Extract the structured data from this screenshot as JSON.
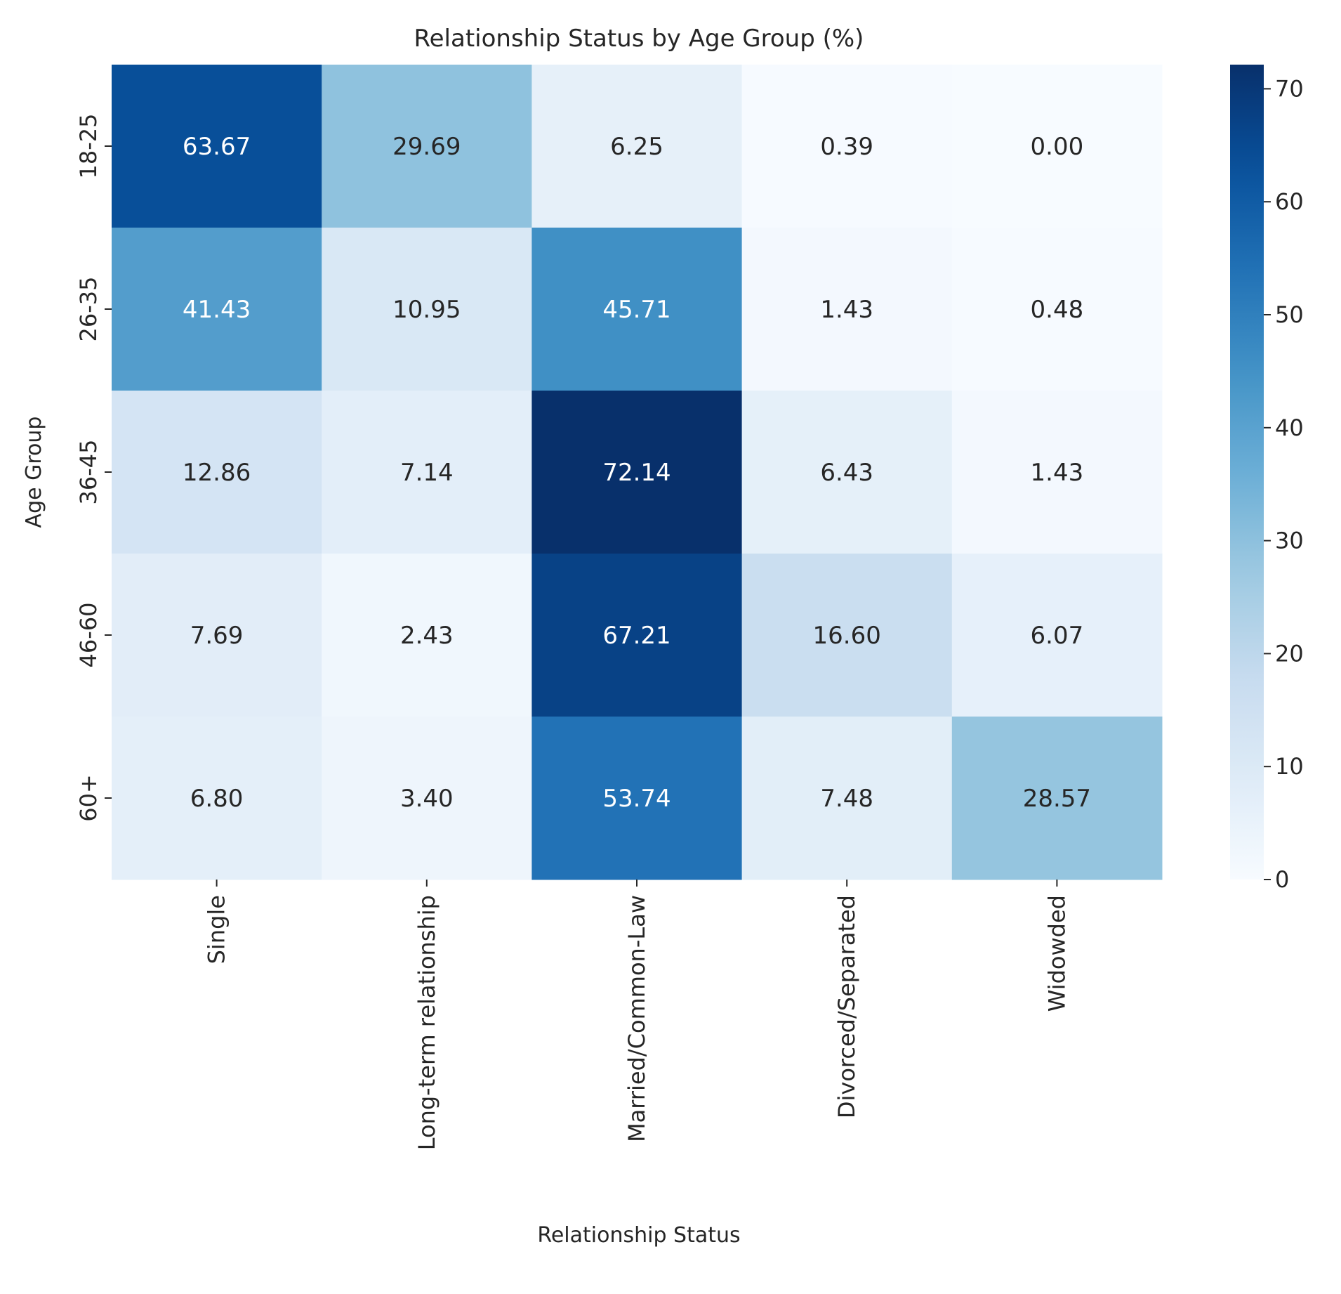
{
  "chart_data": {
    "type": "heatmap",
    "title": "Relationship Status by Age Group (%)",
    "xlabel": "Relationship Status",
    "ylabel": "Age Group",
    "x_categories": [
      "Single",
      "Long-term relationship",
      "Married/Common-Law",
      "Divorced/Separated",
      "Widowded"
    ],
    "y_categories": [
      "18-25",
      "26-35",
      "36-45",
      "46-60",
      "60+"
    ],
    "values": [
      [
        63.67,
        29.69,
        6.25,
        0.39,
        0.0
      ],
      [
        41.43,
        10.95,
        45.71,
        1.43,
        0.48
      ],
      [
        12.86,
        7.14,
        72.14,
        6.43,
        1.43
      ],
      [
        7.69,
        2.43,
        67.21,
        16.6,
        6.07
      ],
      [
        6.8,
        3.4,
        53.74,
        7.48,
        28.57
      ]
    ],
    "value_format": "2 decimals",
    "colormap": "Blues",
    "colorbar": {
      "range": [
        0,
        72.14
      ],
      "ticks": [
        0,
        10,
        20,
        30,
        40,
        50,
        60,
        70
      ]
    },
    "grid": false,
    "legend": "colorbar-right"
  }
}
